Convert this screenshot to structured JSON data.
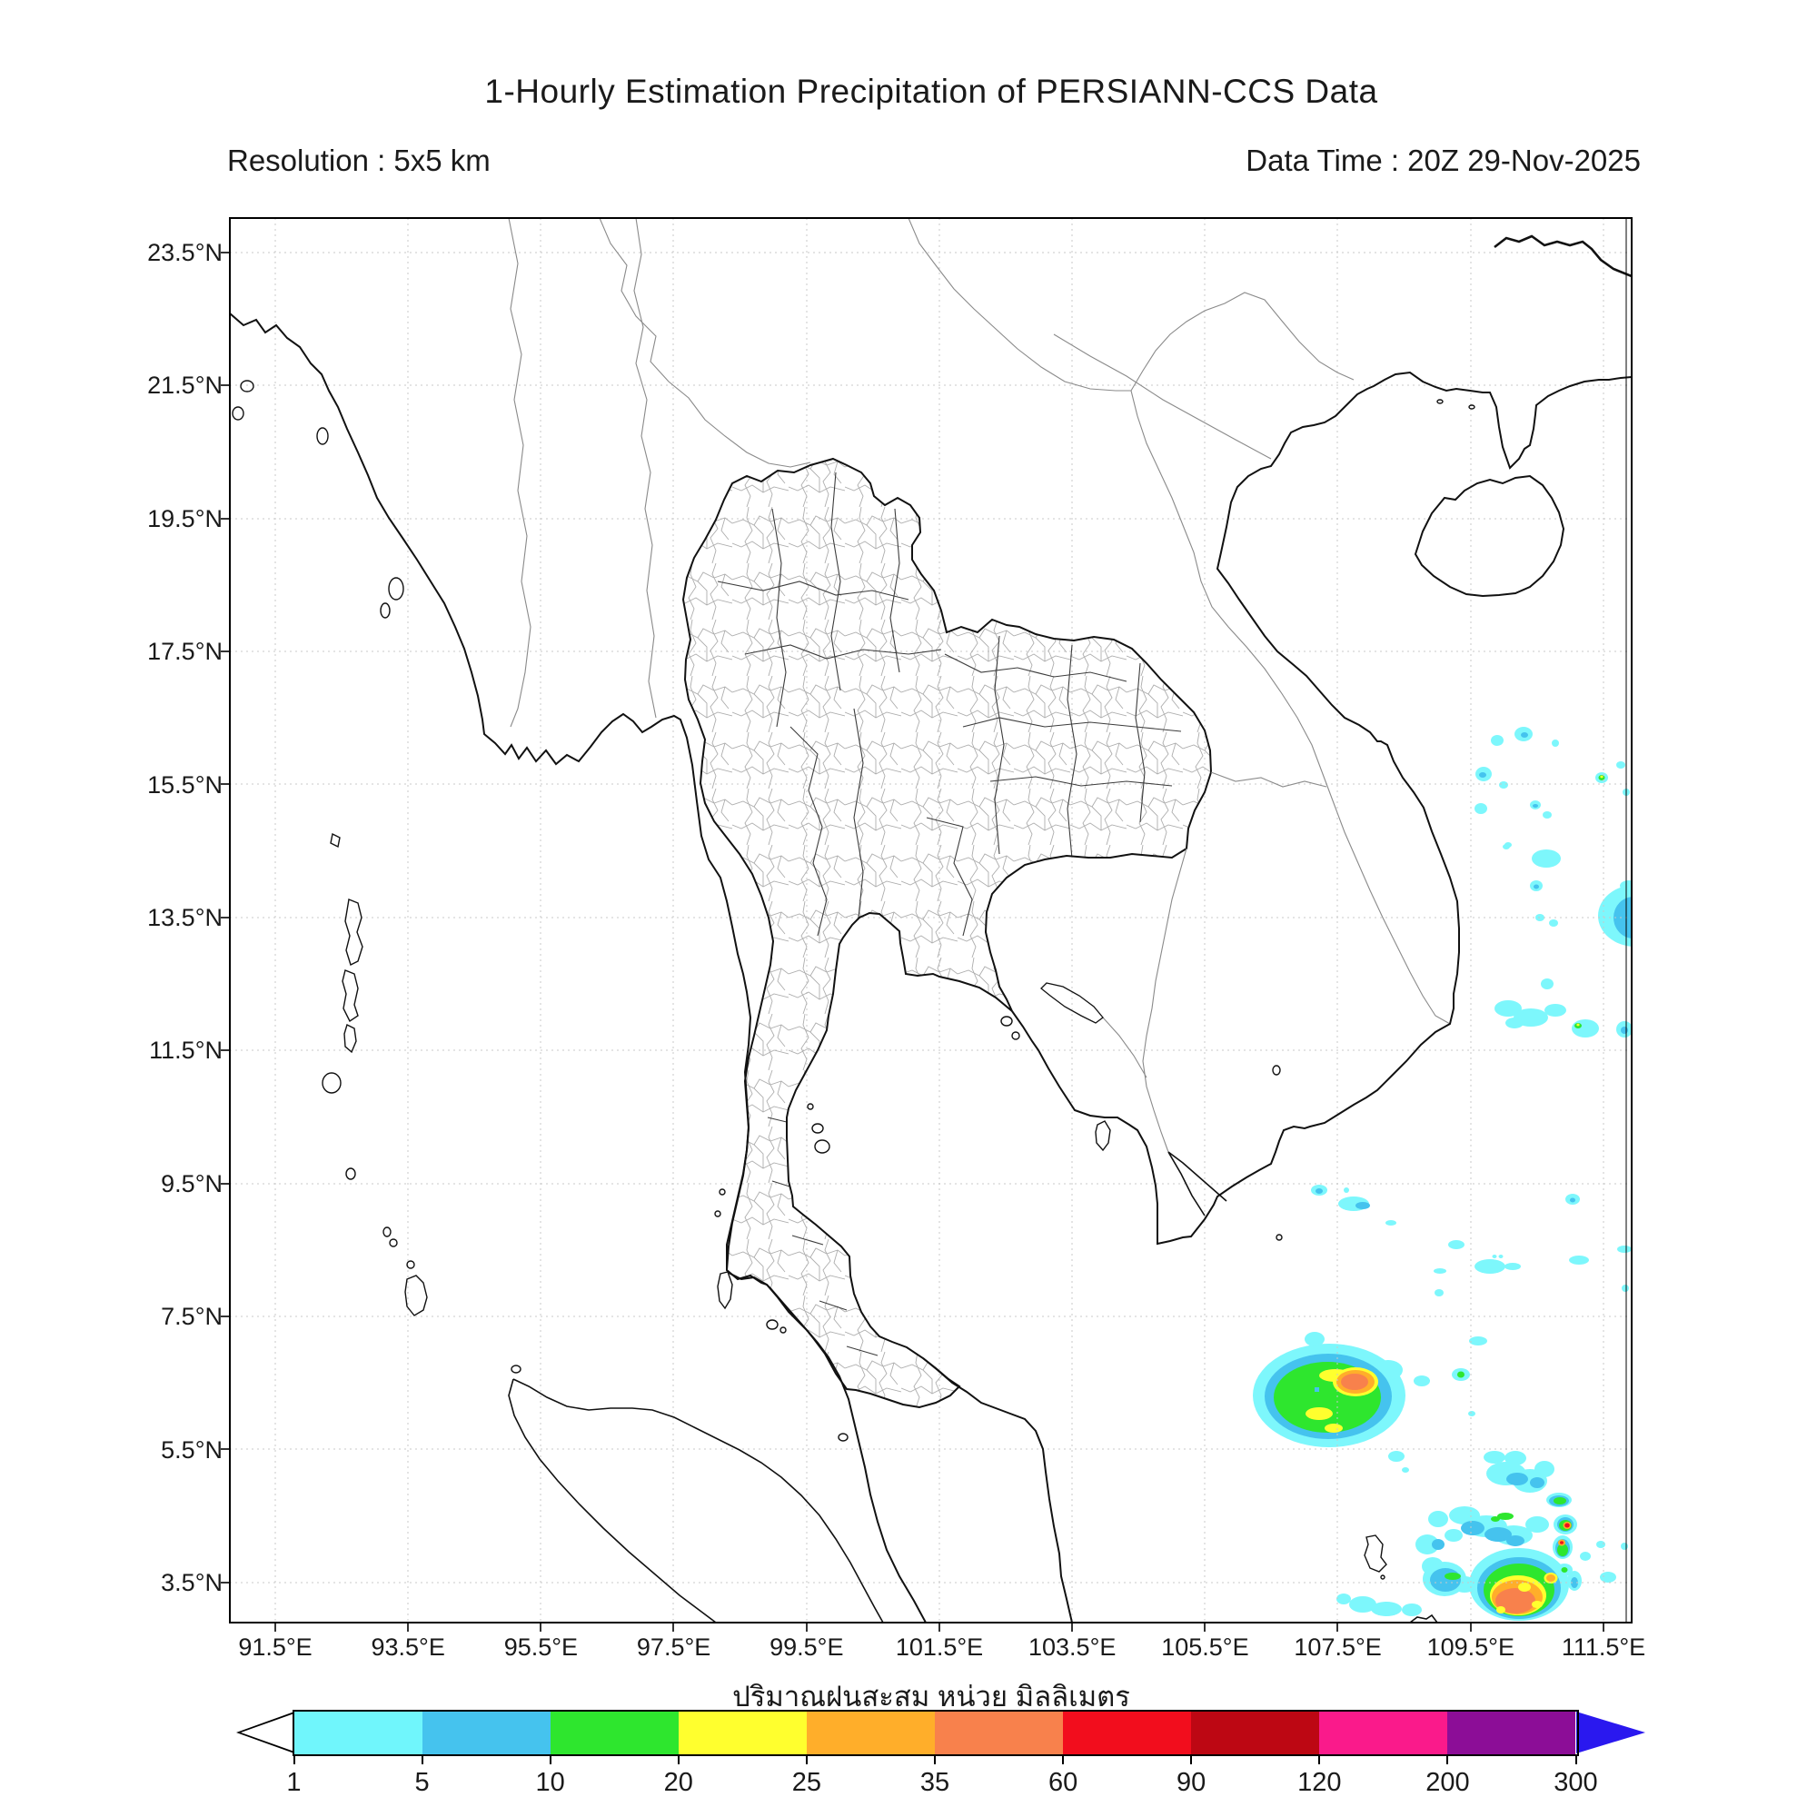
{
  "header": {
    "title": "1-Hourly Estimation Precipitation of PERSIANN-CCS Data",
    "subtitle_left": "Resolution : 5x5 km",
    "subtitle_right": "Data Time : 20Z 29-Nov-2025"
  },
  "axes": {
    "x_ticks": [
      "91.5°E",
      "93.5°E",
      "95.5°E",
      "97.5°E",
      "99.5°E",
      "101.5°E",
      "103.5°E",
      "105.5°E",
      "107.5°E",
      "109.5°E",
      "111.5°E"
    ],
    "y_ticks": [
      "23.5°N",
      "21.5°N",
      "19.5°N",
      "17.5°N",
      "15.5°N",
      "13.5°N",
      "11.5°N",
      "9.5°N",
      "7.5°N",
      "5.5°N",
      "3.5°N"
    ],
    "x_axis_label": "ปริมาณฝนสะสม หน่วย มิลลิเมตร"
  },
  "colorbar": {
    "tick_labels": [
      "1",
      "5",
      "10",
      "20",
      "25",
      "35",
      "60",
      "90",
      "120",
      "200",
      "300"
    ],
    "segment_colors": [
      "#70f6fc",
      "#45c3ee",
      "#2ee62e",
      "#ffff2e",
      "#ffae2a",
      "#f8814c",
      "#f20d1d",
      "#bd0713",
      "#fa1a8b",
      "#8c0d97"
    ],
    "under_color": "#ffffff",
    "over_color": "#2a18ef",
    "units": "mm"
  },
  "map_data": {
    "region": "Thailand / Indochina / South China Sea",
    "lon_range": [
      "91.5°E",
      "111.5°E"
    ],
    "lat_range": [
      "3.5°N",
      "23.5°N"
    ],
    "precipitation_regions": [
      {
        "area": "South China Sea ~15.5°N 108–112°E",
        "intensity": "scattered 1–10 mm specks, one 10–20 mm speck at right edge"
      },
      {
        "area": "right map edge ~13.5°N",
        "intensity": "1–10 mm patch"
      },
      {
        "area": "~11.8°N 108.5–111.5°E",
        "intensity": "scattered 1–10 mm band with tiny 10–20 mm core"
      },
      {
        "area": "~7.5–9.5°N offshore",
        "intensity": "scattered 1–5 mm specks"
      },
      {
        "area": "storm cell ~6°N 107.5–108.5°E",
        "intensity": "core 25–60 mm, ring 10–20 mm, fringe 1–10 mm"
      },
      {
        "area": "storm complex ~3–5°N 108.5–111.5°E",
        "intensity": "cores 25–90 mm, widespread 1–20 mm"
      }
    ]
  }
}
